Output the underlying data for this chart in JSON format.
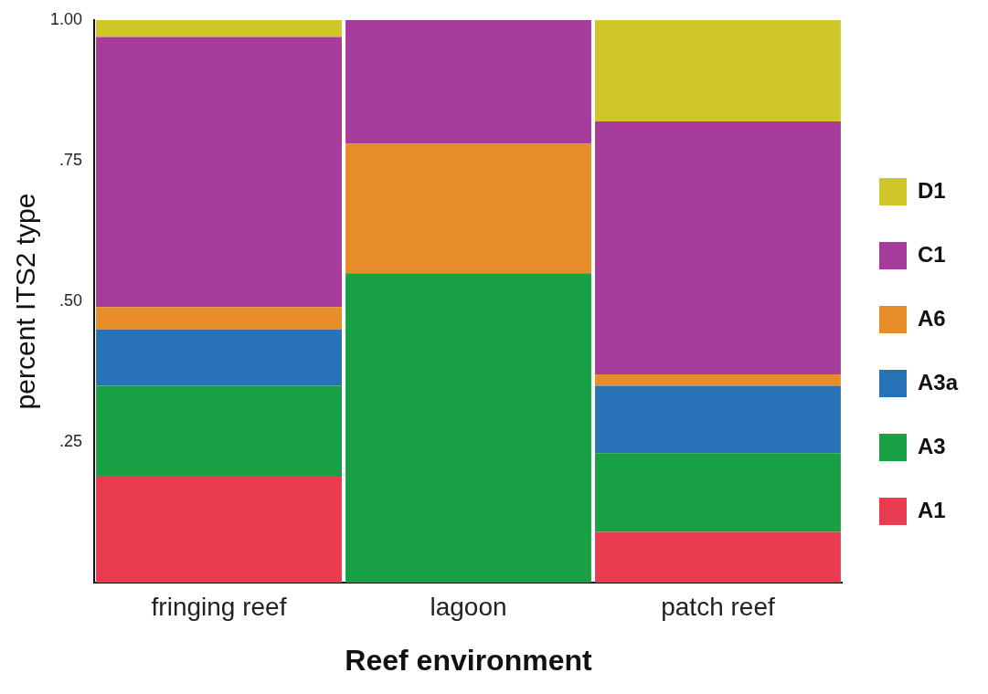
{
  "chart_data": {
    "type": "bar",
    "stacked": true,
    "xlabel": "Reef environment",
    "ylabel": "percent ITS2 type",
    "categories": [
      "fringing reef",
      "lagoon",
      "patch reef"
    ],
    "series": [
      {
        "name": "A1",
        "color": "#ea3c50",
        "values": [
          0.19,
          0,
          0.09
        ]
      },
      {
        "name": "A3",
        "color": "#17a044",
        "values": [
          0.16,
          0.55,
          0.14
        ]
      },
      {
        "name": "A3a",
        "color": "#2872b8",
        "values": [
          0.1,
          0,
          0.12
        ]
      },
      {
        "name": "A6",
        "color": "#e68c28",
        "values": [
          0.04,
          0.23,
          0.02
        ]
      },
      {
        "name": "C1",
        "color": "#a83c9c",
        "values": [
          0.48,
          0.22,
          0.45
        ]
      },
      {
        "name": "D1",
        "color": "#cfc72a",
        "values": [
          0.03,
          0,
          0.18
        ]
      }
    ],
    "ylim": [
      0,
      1
    ],
    "yticks": [
      {
        "value": 0,
        "label": null
      },
      {
        "value": 0.25,
        "label": ".25"
      },
      {
        "value": 0.5,
        "label": ".50"
      },
      {
        "value": 0.75,
        "label": ".75"
      },
      {
        "value": 1,
        "label": "1.00"
      }
    ],
    "grid": false,
    "legend": "right"
  }
}
